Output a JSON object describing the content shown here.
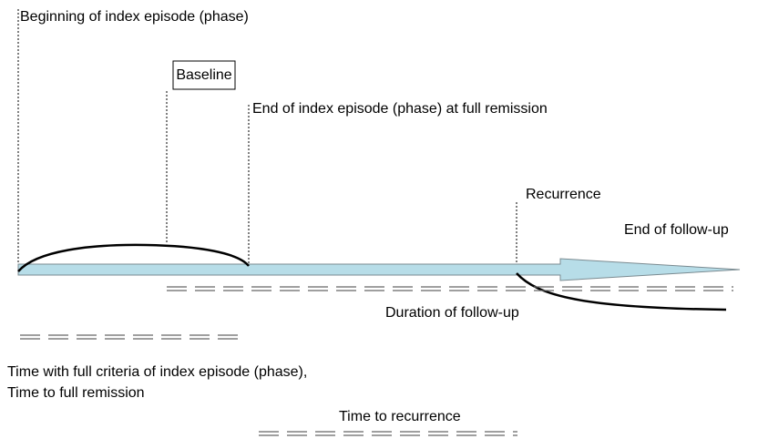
{
  "labels": {
    "beginning": "Beginning of index episode (phase)",
    "baseline": "Baseline",
    "end_index": "End of index episode (phase) at full remission",
    "recurrence": "Recurrence",
    "end_follow_up": "End of follow-up",
    "duration_follow_up": "Duration of follow-up",
    "time_full_criteria": "Time with full criteria of index episode (phase),",
    "time_full_remission": "Time to full remission",
    "time_recurrence": "Time to recurrence"
  }
}
